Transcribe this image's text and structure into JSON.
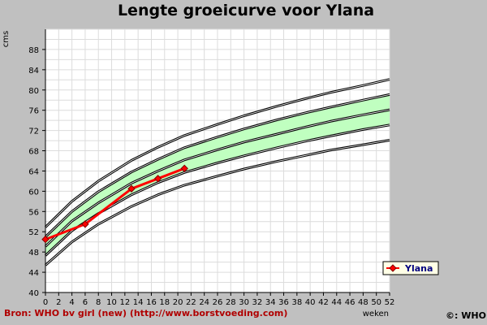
{
  "chart_data": {
    "type": "line",
    "title": "Lengte groeicurve voor Ylana",
    "xlabel": "weken",
    "ylabel": "cms",
    "xlim": [
      0,
      52
    ],
    "ylim": [
      40,
      92
    ],
    "x_ticks": [
      0,
      2,
      4,
      6,
      8,
      10,
      12,
      14,
      16,
      18,
      20,
      22,
      24,
      26,
      28,
      30,
      32,
      34,
      36,
      38,
      40,
      42,
      44,
      46,
      48,
      50,
      52
    ],
    "y_ticks": [
      40,
      44,
      48,
      52,
      56,
      60,
      64,
      68,
      72,
      76,
      80,
      84,
      88
    ],
    "grid": true,
    "legend_position": "right",
    "colors": {
      "band": "#c0ffc0",
      "series": "#ff0000",
      "marker": "#ff0000",
      "reference": "#000000",
      "background": "#c0c0c0",
      "plot": "#ffffff",
      "source": "#b00000",
      "legend_text": "#000080"
    },
    "reference_x": [
      0,
      4,
      8,
      13,
      17,
      21,
      26,
      30,
      35,
      39,
      43,
      48,
      52
    ],
    "reference_curves": [
      {
        "values": [
          45.4,
          50.0,
          53.5,
          57.0,
          59.3,
          61.2,
          63.0,
          64.4,
          65.9,
          67.0,
          68.1,
          69.2,
          70.1
        ]
      },
      {
        "values": [
          47.3,
          52.2,
          55.6,
          59.3,
          61.7,
          63.7,
          65.6,
          67.0,
          68.6,
          69.8,
          70.9,
          72.2,
          73.1
        ]
      },
      {
        "values": [
          49.1,
          54.1,
          57.7,
          61.6,
          64.0,
          66.2,
          68.2,
          69.7,
          71.3,
          72.6,
          73.8,
          75.1,
          76.1
        ]
      },
      {
        "values": [
          51.0,
          56.0,
          59.9,
          63.8,
          66.3,
          68.6,
          70.7,
          72.3,
          74.1,
          75.4,
          76.6,
          78.0,
          79.1
        ]
      },
      {
        "values": [
          52.9,
          58.0,
          62.0,
          66.1,
          68.7,
          71.0,
          73.2,
          74.9,
          76.8,
          78.2,
          79.5,
          80.9,
          82.1
        ]
      }
    ],
    "band_between_curves": [
      1,
      3
    ],
    "series": [
      {
        "name": "Ylana",
        "x": [
          0,
          6,
          13,
          17,
          21
        ],
        "values": [
          50.5,
          53.5,
          60.5,
          62.5,
          64.5
        ]
      }
    ],
    "source": "Bron: WHO bv girl (new) (http://www.borstvoeding.com)",
    "credit": "©: WHO"
  }
}
